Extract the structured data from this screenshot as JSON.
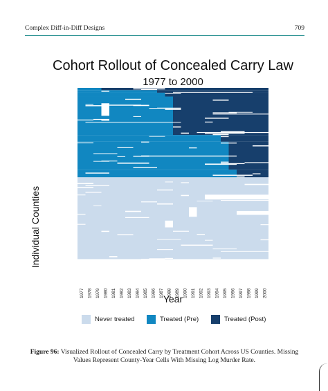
{
  "header": {
    "left": "Complex Diff-in-Diff Designs",
    "right": "709"
  },
  "chart_data": {
    "type": "heatmap",
    "title": "Cohort Rollout of Concealed Carry Law",
    "subtitle": "1977 to 2000",
    "xlabel": "Year",
    "ylabel": "Individual Counties",
    "years": [
      "1977",
      "1978",
      "1979",
      "1980",
      "1981",
      "1982",
      "1983",
      "1984",
      "1985",
      "1986",
      "1987",
      "1988",
      "1989",
      "1990",
      "1991",
      "1992",
      "1993",
      "1994",
      "1995",
      "1996",
      "1997",
      "1998",
      "1999",
      "2000"
    ],
    "categories": [
      "Never treated",
      "Treated (Pre)",
      "Treated (Post)",
      "Missing"
    ],
    "colors": {
      "never": "#cbdbec",
      "pre": "#1187c1",
      "post": "#173f6c",
      "missing": "#ffffff"
    },
    "legend_position": "bottom",
    "cohorts": [
      {
        "adoption_year": "1980",
        "share_of_counties": 0.012
      },
      {
        "adoption_year": "1987",
        "share_of_counties": 0.013
      },
      {
        "adoption_year": "1988",
        "share_of_counties": 0.02
      },
      {
        "adoption_year": "1989",
        "share_of_counties": 0.2
      },
      {
        "adoption_year": "1995",
        "share_of_counties": 0.035
      },
      {
        "adoption_year": "1996",
        "share_of_counties": 0.145
      },
      {
        "adoption_year": "1997",
        "share_of_counties": 0.04
      },
      {
        "adoption_year": "never",
        "share_of_counties": 0.425
      }
    ]
  },
  "legend": [
    {
      "label": "Never treated",
      "color": "#cbdbec"
    },
    {
      "label": "Treated (Pre)",
      "color": "#1187c1"
    },
    {
      "label": "Treated (Post)",
      "color": "#173f6c"
    }
  ],
  "caption": {
    "label": "Figure 96:",
    "text": "Visualized Rollout of Concealed Carry by Treatment Cohort Across US Counties. Missing Values Represent County-Year Cells With Missing Log Murder Rate."
  }
}
